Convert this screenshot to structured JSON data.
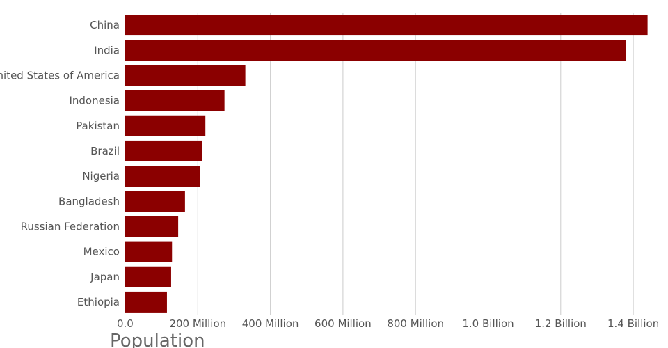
{
  "chart_data": {
    "type": "bar",
    "orientation": "horizontal",
    "categories": [
      "China",
      "India",
      "United States of America",
      "Indonesia",
      "Pakistan",
      "Brazil",
      "Nigeria",
      "Bangladesh",
      "Russian Federation",
      "Mexico",
      "Japan",
      "Ethiopia"
    ],
    "values": [
      1439323776,
      1380004385,
      331002651,
      273523615,
      220892340,
      212559417,
      206139589,
      164689383,
      145934462,
      128932753,
      126476461,
      114963588
    ],
    "xlim": [
      0,
      1440000000
    ],
    "xticks": [
      0,
      200000000,
      400000000,
      600000000,
      800000000,
      1000000000,
      1200000000,
      1400000000
    ],
    "xtick_labels": [
      "0.0",
      "200 Million",
      "400 Million",
      "600 Million",
      "800 Million",
      "1.0 Billion",
      "1.2 Billion",
      "1.4 Billion"
    ],
    "xlabel": "Population",
    "ylabel": "",
    "title": "",
    "grid": "vertical",
    "legend": "none",
    "bar_color": "#8b0000"
  }
}
